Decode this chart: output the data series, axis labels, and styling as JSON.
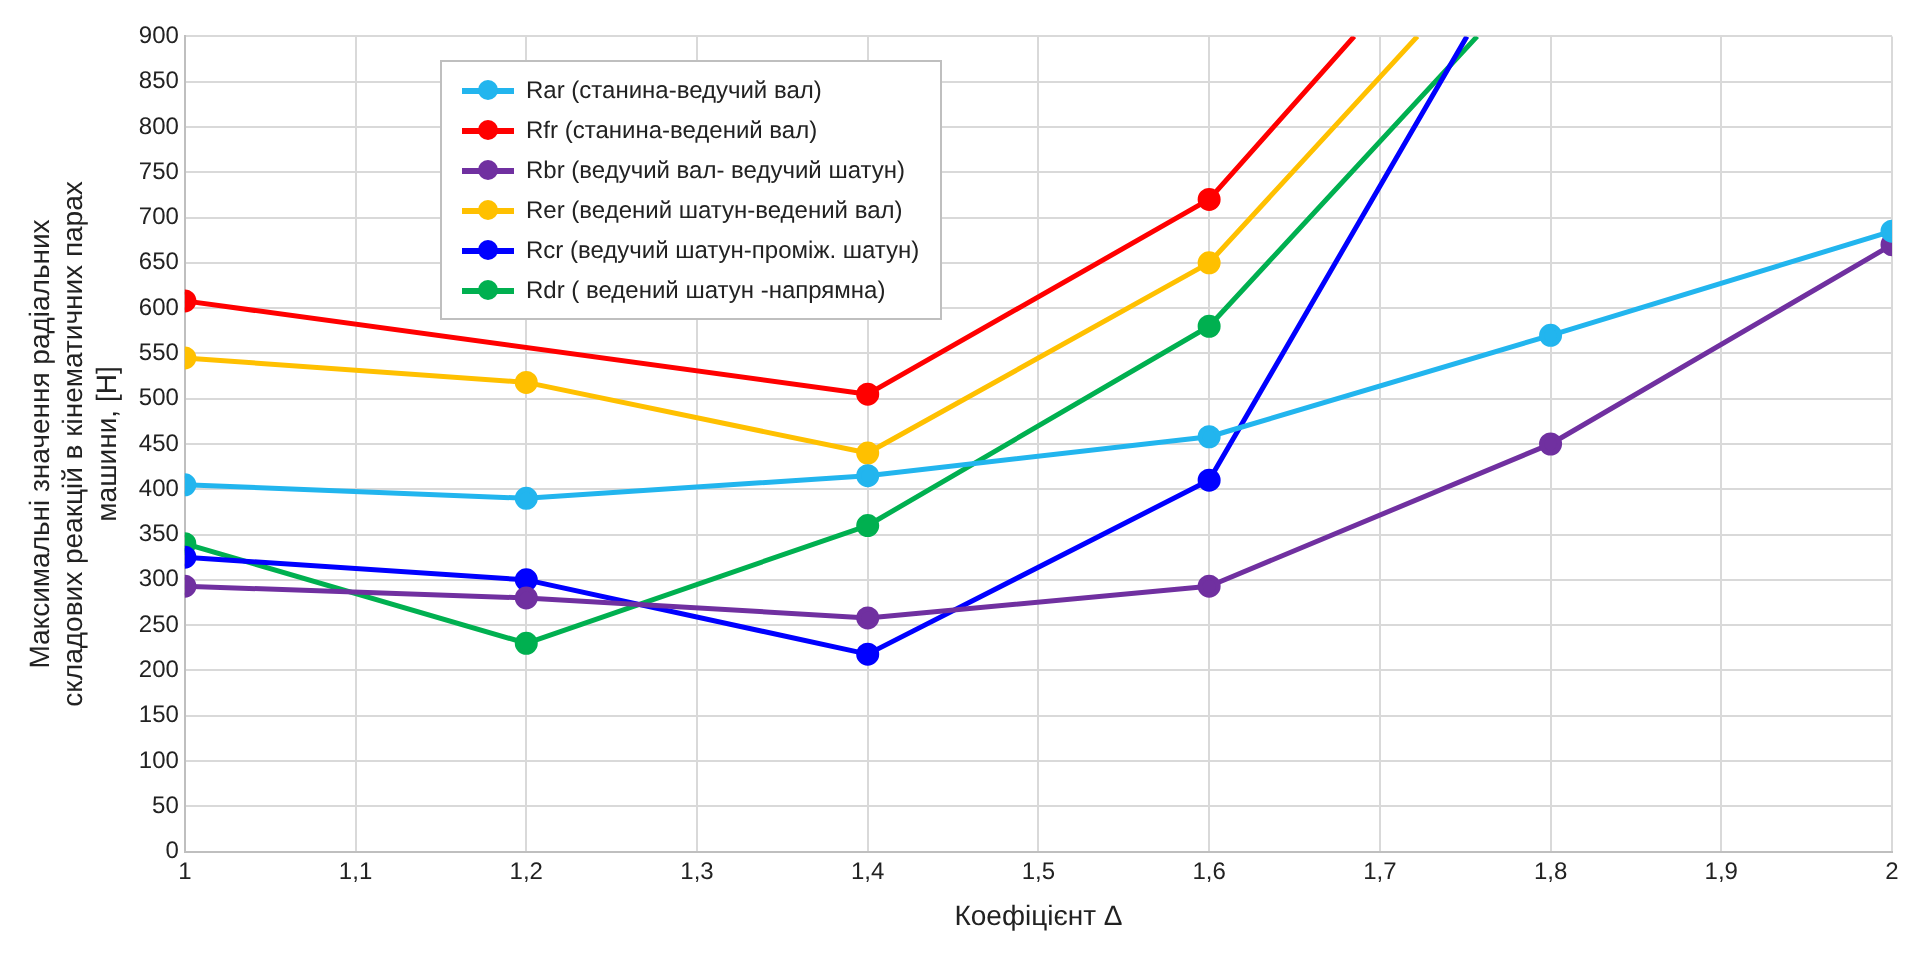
{
  "chart_data": {
    "type": "line",
    "xlabel": "Коефіцієнт Δ",
    "ylabel": "Максимальні значення радіальних\nскладових реакцій в кінематичних парах\nмашини, [H]",
    "xlim": [
      1,
      2
    ],
    "xticks": [
      {
        "value": 1,
        "label": "1"
      },
      {
        "value": 1.1,
        "label": "1,1"
      },
      {
        "value": 1.2,
        "label": "1,2"
      },
      {
        "value": 1.3,
        "label": "1,3"
      },
      {
        "value": 1.4,
        "label": "1,4"
      },
      {
        "value": 1.5,
        "label": "1,5"
      },
      {
        "value": 1.6,
        "label": "1,6"
      },
      {
        "value": 1.7,
        "label": "1,7"
      },
      {
        "value": 1.8,
        "label": "1,8"
      },
      {
        "value": 1.9,
        "label": "1,9"
      },
      {
        "value": 2,
        "label": "2"
      }
    ],
    "ylim": [
      0,
      900
    ],
    "yticks": [
      0,
      50,
      100,
      150,
      200,
      250,
      300,
      350,
      400,
      450,
      500,
      550,
      600,
      650,
      700,
      750,
      800,
      850,
      900
    ],
    "grid": true,
    "legend": "top left",
    "marker": "circle",
    "line_style": "solid",
    "series": [
      {
        "name": "Rar (станина-ведучий вал)",
        "color": "#22b5ee",
        "x": [
          1,
          1.2,
          1.4,
          1.6,
          1.8,
          2
        ],
        "values": [
          405,
          390,
          415,
          458,
          570,
          685
        ]
      },
      {
        "name": "Rfr (станина-ведений вал)",
        "color": "#ff0000",
        "x": [
          1,
          1.2,
          1.4,
          1.6,
          1.685
        ],
        "values": [
          608,
          null,
          505,
          720,
          900
        ]
      },
      {
        "name": "Rbr (ведучий вал- ведучий шатун)",
        "color": "#7030a0",
        "x": [
          1,
          1.2,
          1.4,
          1.6,
          1.8,
          2
        ],
        "values": [
          293,
          280,
          258,
          293,
          450,
          670
        ]
      },
      {
        "name": "Rer (ведений шатун-ведений вал)",
        "color": "#ffc000",
        "x": [
          1,
          1.2,
          1.4,
          1.6,
          1.722
        ],
        "values": [
          545,
          518,
          440,
          650,
          900
        ]
      },
      {
        "name": "Rcr (ведучий шатун-проміж. шатун)",
        "color": "#0000ff",
        "x": [
          1,
          1.2,
          1.4,
          1.6,
          1.751
        ],
        "values": [
          325,
          300,
          218,
          410,
          900
        ]
      },
      {
        "name": "Rdr ( ведений шатун -напрямна)",
        "color": "#00b050",
        "x": [
          1,
          1.2,
          1.4,
          1.6,
          1.757
        ],
        "values": [
          340,
          230,
          360,
          580,
          900
        ]
      }
    ]
  }
}
